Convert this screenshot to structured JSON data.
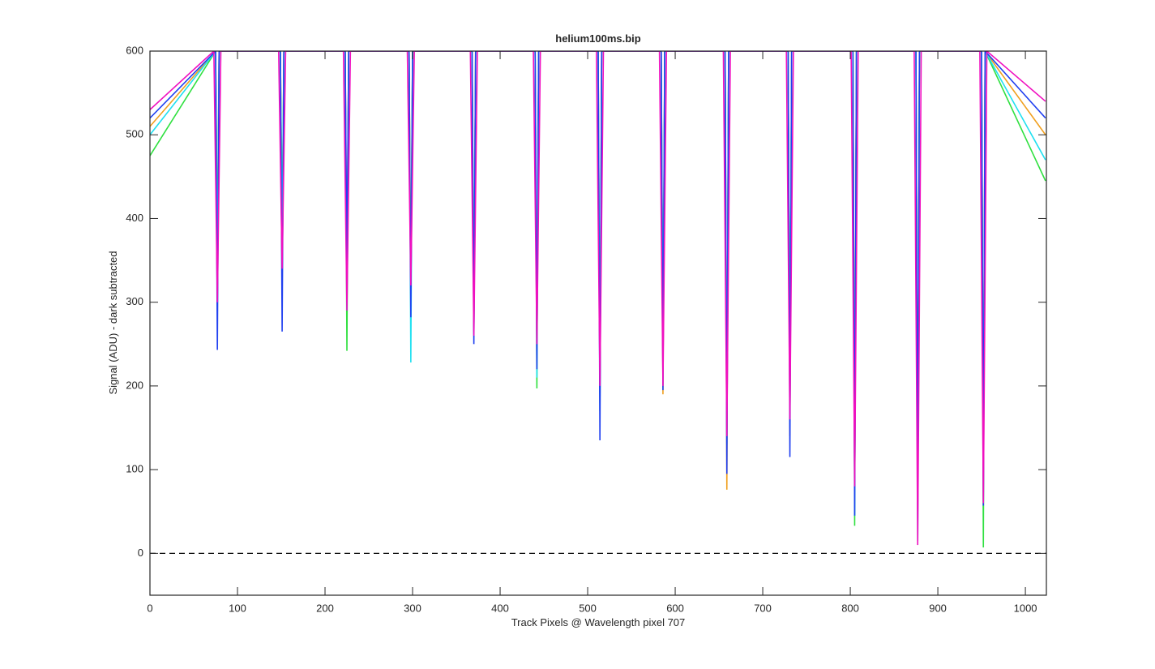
{
  "chart_data": {
    "type": "line",
    "title": "helium100ms.bip",
    "x_label": "Track Pixels @ Wavelength pixel 707",
    "y_label": "Signal (ADU) - dark subtracted",
    "xlim": [
      0,
      1024
    ],
    "ylim": [
      -50,
      600
    ],
    "xticks": [
      0,
      100,
      200,
      300,
      400,
      500,
      600,
      700,
      800,
      900,
      1000
    ],
    "yticks": [
      0,
      100,
      200,
      300,
      400,
      500,
      600
    ],
    "hline": 0,
    "series": [
      {
        "name": "orange",
        "color": "#f0a020",
        "x": [
          0,
          75,
          77,
          79,
          149,
          151,
          153,
          223,
          225,
          227,
          296,
          298,
          300,
          368,
          370,
          372,
          440,
          442,
          444,
          512,
          514,
          516,
          584,
          586,
          588,
          657,
          659,
          661,
          729,
          731,
          733,
          803,
          805,
          807,
          875,
          877,
          879,
          950,
          952,
          954,
          1023
        ],
        "values": [
          510,
          600,
          350,
          600,
          600,
          370,
          600,
          600,
          330,
          600,
          600,
          310,
          600,
          600,
          265,
          600,
          600,
          240,
          600,
          600,
          180,
          600,
          600,
          190,
          600,
          600,
          76,
          600,
          600,
          140,
          600,
          600,
          90,
          600,
          600,
          50,
          600,
          600,
          100,
          600,
          500
        ]
      },
      {
        "name": "green",
        "color": "#30e040",
        "x": [
          0,
          75,
          77,
          79,
          149,
          151,
          153,
          223,
          225,
          227,
          296,
          298,
          300,
          368,
          370,
          372,
          440,
          442,
          444,
          512,
          514,
          516,
          584,
          586,
          588,
          657,
          659,
          661,
          729,
          731,
          733,
          803,
          805,
          807,
          875,
          877,
          879,
          950,
          952,
          954,
          1023
        ],
        "values": [
          475,
          600,
          360,
          600,
          600,
          380,
          600,
          600,
          242,
          600,
          600,
          300,
          600,
          600,
          270,
          600,
          600,
          197,
          600,
          600,
          190,
          600,
          600,
          230,
          600,
          600,
          150,
          600,
          600,
          170,
          600,
          600,
          33,
          600,
          600,
          60,
          600,
          600,
          7,
          600,
          445
        ]
      },
      {
        "name": "cyan",
        "color": "#20e0f0",
        "x": [
          0,
          75,
          77,
          79,
          149,
          151,
          153,
          223,
          225,
          227,
          296,
          298,
          300,
          368,
          370,
          372,
          440,
          442,
          444,
          512,
          514,
          516,
          584,
          586,
          588,
          657,
          659,
          661,
          729,
          731,
          733,
          803,
          805,
          807,
          875,
          877,
          879,
          950,
          952,
          954,
          1023
        ],
        "values": [
          500,
          600,
          330,
          600,
          600,
          360,
          600,
          600,
          290,
          600,
          600,
          228,
          600,
          600,
          262,
          600,
          600,
          210,
          600,
          600,
          170,
          600,
          600,
          210,
          600,
          600,
          130,
          600,
          600,
          150,
          600,
          600,
          45,
          600,
          600,
          15,
          600,
          600,
          80,
          600,
          470
        ]
      },
      {
        "name": "blue",
        "color": "#2040f0",
        "x": [
          0,
          75,
          77,
          79,
          149,
          151,
          153,
          223,
          225,
          227,
          296,
          298,
          300,
          368,
          370,
          372,
          440,
          442,
          444,
          512,
          514,
          516,
          584,
          586,
          588,
          657,
          659,
          661,
          729,
          731,
          733,
          803,
          805,
          807,
          875,
          877,
          879,
          950,
          952,
          954,
          1023
        ],
        "values": [
          520,
          600,
          243,
          600,
          600,
          265,
          600,
          600,
          340,
          600,
          600,
          282,
          600,
          600,
          250,
          600,
          600,
          220,
          600,
          600,
          135,
          600,
          600,
          195,
          600,
          600,
          95,
          600,
          600,
          115,
          600,
          600,
          45,
          600,
          600,
          40,
          600,
          600,
          57,
          600,
          520
        ]
      },
      {
        "name": "magenta",
        "color": "#f010c0",
        "x": [
          0,
          73,
          77,
          81,
          147,
          151,
          155,
          221,
          225,
          229,
          294,
          298,
          302,
          366,
          370,
          374,
          438,
          442,
          446,
          510,
          514,
          518,
          582,
          586,
          590,
          655,
          659,
          663,
          727,
          731,
          735,
          801,
          805,
          809,
          873,
          877,
          881,
          948,
          952,
          956,
          1023
        ],
        "values": [
          530,
          600,
          300,
          600,
          600,
          340,
          600,
          600,
          290,
          600,
          600,
          320,
          600,
          600,
          260,
          600,
          600,
          250,
          600,
          600,
          200,
          600,
          600,
          200,
          600,
          600,
          140,
          600,
          600,
          160,
          600,
          600,
          80,
          600,
          600,
          10,
          600,
          600,
          60,
          600,
          540
        ]
      }
    ]
  }
}
